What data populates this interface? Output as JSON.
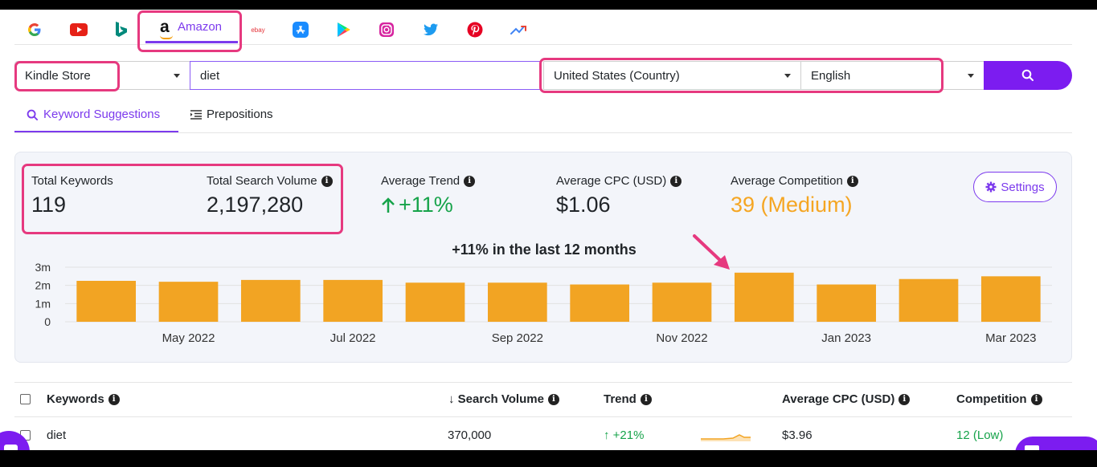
{
  "platforms": [
    "google-icon",
    "youtube-icon",
    "bing-icon",
    "amazon-icon",
    "ebay-icon",
    "app-store-icon",
    "google-play-icon",
    "instagram-icon",
    "twitter-icon",
    "pinterest-icon",
    "trends-icon"
  ],
  "amazon_tab": {
    "label": "Amazon",
    "logo": "a"
  },
  "ebay_logo": "ebay",
  "search": {
    "category": "Kindle Store",
    "query": "diet",
    "country": "United States (Country)",
    "language": "English"
  },
  "tabs": [
    {
      "label": "Keyword Suggestions"
    },
    {
      "label": "Prepositions"
    }
  ],
  "stats": {
    "total_keywords": {
      "label": "Total Keywords",
      "value": "119"
    },
    "total_search_volume": {
      "label": "Total Search Volume",
      "value": "2,197,280"
    },
    "average_trend": {
      "label": "Average Trend",
      "value": "+11%"
    },
    "average_cpc": {
      "label": "Average CPC (USD)",
      "value": "$1.06"
    },
    "average_competition": {
      "label": "Average Competition",
      "value": "39 (Medium)"
    },
    "settings_label": "Settings"
  },
  "colors": {
    "accent": "#7c3aed",
    "bar": "#f2a423",
    "positive": "#16a34a",
    "medium": "#f5a623",
    "highlight": "#e6397f"
  },
  "chart_data": {
    "type": "bar",
    "title": "+11% in the last 12 months",
    "categories": [
      "Apr 2022",
      "May 2022",
      "Jun 2022",
      "Jul 2022",
      "Aug 2022",
      "Sep 2022",
      "Oct 2022",
      "Nov 2022",
      "Dec 2022",
      "Jan 2023",
      "Feb 2023",
      "Mar 2023"
    ],
    "tick_labels": [
      "May 2022",
      "Jul 2022",
      "Sep 2022",
      "Nov 2022",
      "Jan 2023",
      "Mar 2023"
    ],
    "values": [
      2250000,
      2200000,
      2300000,
      2300000,
      2150000,
      2150000,
      2050000,
      2150000,
      2700000,
      2050000,
      2350000,
      2500000
    ],
    "ylim": [
      0,
      3000000
    ],
    "yticks": [
      {
        "value": 0,
        "label": "0"
      },
      {
        "value": 1000000,
        "label": "1m"
      },
      {
        "value": 2000000,
        "label": "2m"
      },
      {
        "value": 3000000,
        "label": "3m"
      }
    ],
    "xlabel": "",
    "ylabel": "",
    "grid": true
  },
  "table": {
    "headers": [
      "Keywords",
      "↓ Search Volume",
      "Trend",
      "Average CPC (USD)",
      "Competition"
    ],
    "rows": [
      {
        "keyword": "diet",
        "search_volume": "370,000",
        "trend": "↑ +21%",
        "cpc": "$3.96",
        "competition": "12 (Low)"
      }
    ]
  }
}
